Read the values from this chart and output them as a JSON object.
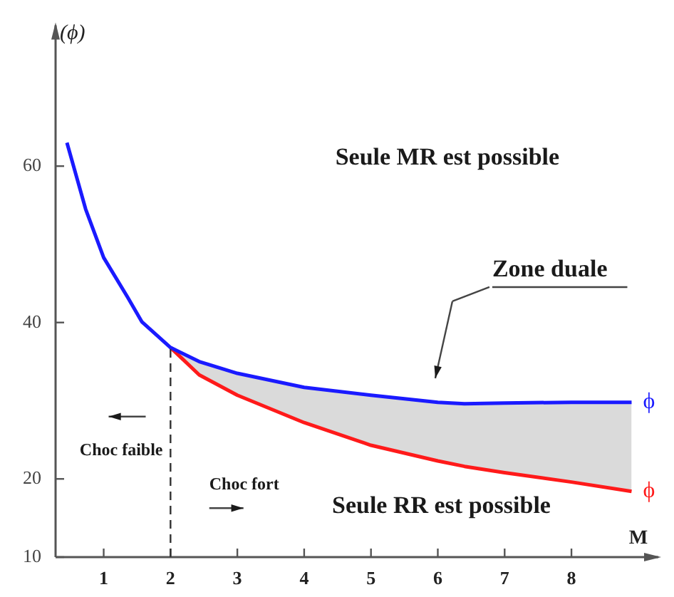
{
  "chart_data": {
    "type": "line",
    "xlabel": "M",
    "ylabel": "(ϕ)",
    "xlim": [
      0.28,
      9.3
    ],
    "xticks": [
      1,
      2,
      3,
      4,
      5,
      6,
      7,
      8
    ],
    "ylim": [
      10,
      78
    ],
    "yticks": [
      10,
      20,
      40,
      60
    ],
    "grid": false,
    "legend": false,
    "marker": "none",
    "line_style": "solid",
    "series": [
      {
        "name": "ϕ",
        "color": "#1a1aff",
        "x": [
          0.45,
          0.73,
          1,
          1.36,
          1.57,
          2,
          2.43,
          3,
          4,
          5,
          6,
          6.4,
          7,
          8,
          8.9
        ],
        "values": [
          63,
          54.5,
          48.3,
          43.2,
          40.1,
          36.8,
          35,
          33.5,
          31.7,
          30.7,
          29.8,
          29.6,
          29.7,
          29.8,
          29.8
        ],
        "lower": [
          null,
          null,
          null,
          null,
          null,
          36.8,
          33.3,
          30.7,
          27.2,
          24.3,
          22.3,
          21.6,
          20.8,
          19.6,
          18.4
        ],
        "upper": [
          null,
          null,
          null,
          null,
          null,
          36.8,
          35,
          33.5,
          31.7,
          30.7,
          29.8,
          29.6,
          29.7,
          29.8,
          29.8
        ]
      },
      {
        "name": "ϕ",
        "color": "#ff1a1a",
        "x": [
          2,
          2.43,
          3,
          4,
          5,
          6,
          6.4,
          7,
          8,
          8.9
        ],
        "values": [
          36.8,
          33.3,
          30.7,
          27.2,
          24.3,
          22.3,
          21.6,
          20.8,
          19.6,
          18.4
        ]
      }
    ],
    "ref_lines": [
      {
        "axis": "x",
        "value": 2,
        "color": "#333333",
        "line_style": "dashed"
      }
    ],
    "annotations": [
      "Seule MR est possible",
      "Seule RR est possible",
      "Zone duale",
      "Choc faible",
      "Choc fort"
    ]
  }
}
